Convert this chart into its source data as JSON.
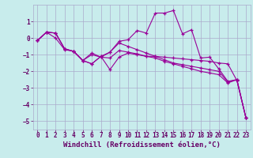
{
  "background_color": "#c8ecec",
  "grid_color": "#aaaacc",
  "line_color": "#990099",
  "marker": "+",
  "xlabel": "Windchill (Refroidissement éolien,°C)",
  "xlabel_color": "#660066",
  "xlabel_fontsize": 6.5,
  "tick_color": "#660066",
  "tick_fontsize": 5.5,
  "xlim": [
    -0.5,
    23.5
  ],
  "ylim": [
    -5.5,
    2.0
  ],
  "yticks": [
    -5,
    -4,
    -3,
    -2,
    -1,
    0,
    1
  ],
  "xticks": [
    0,
    1,
    2,
    3,
    4,
    5,
    6,
    7,
    8,
    9,
    10,
    11,
    12,
    13,
    14,
    15,
    16,
    17,
    18,
    19,
    20,
    21,
    22,
    23
  ],
  "series": [
    [
      0,
      -0.15
    ],
    [
      1,
      0.35
    ],
    [
      2,
      0.3
    ],
    [
      3,
      -0.65
    ],
    [
      4,
      -0.8
    ],
    [
      5,
      -1.35
    ],
    [
      6,
      -0.9
    ],
    [
      7,
      -1.15
    ],
    [
      8,
      -0.85
    ],
    [
      9,
      -0.2
    ],
    [
      10,
      -0.1
    ],
    [
      11,
      0.45
    ],
    [
      12,
      0.3
    ],
    [
      13,
      1.5
    ],
    [
      14,
      1.5
    ],
    [
      15,
      1.65
    ],
    [
      16,
      0.25
    ],
    [
      17,
      0.5
    ],
    [
      18,
      -1.2
    ],
    [
      19,
      -1.15
    ],
    [
      20,
      -1.85
    ],
    [
      21,
      -2.6
    ],
    [
      22,
      -2.5
    ],
    [
      23,
      -4.8
    ]
  ],
  "series2": [
    [
      0,
      -0.15
    ],
    [
      1,
      0.35
    ],
    [
      2,
      0.3
    ],
    [
      3,
      -0.65
    ],
    [
      4,
      -0.8
    ],
    [
      5,
      -1.35
    ],
    [
      6,
      -1.55
    ],
    [
      7,
      -1.1
    ],
    [
      8,
      -1.9
    ],
    [
      9,
      -1.15
    ],
    [
      10,
      -0.9
    ],
    [
      11,
      -1.0
    ],
    [
      12,
      -1.1
    ],
    [
      13,
      -1.1
    ],
    [
      14,
      -1.15
    ],
    [
      15,
      -1.2
    ],
    [
      16,
      -1.25
    ],
    [
      17,
      -1.3
    ],
    [
      18,
      -1.35
    ],
    [
      19,
      -1.4
    ],
    [
      20,
      -1.5
    ],
    [
      21,
      -1.55
    ],
    [
      22,
      -2.55
    ],
    [
      23,
      -4.8
    ]
  ],
  "series3": [
    [
      0,
      -0.15
    ],
    [
      1,
      0.35
    ],
    [
      2,
      0.0
    ],
    [
      3,
      -0.7
    ],
    [
      4,
      -0.8
    ],
    [
      5,
      -1.35
    ],
    [
      6,
      -1.0
    ],
    [
      7,
      -1.15
    ],
    [
      8,
      -1.2
    ],
    [
      9,
      -0.75
    ],
    [
      10,
      -0.85
    ],
    [
      11,
      -0.95
    ],
    [
      12,
      -1.1
    ],
    [
      13,
      -1.2
    ],
    [
      14,
      -1.4
    ],
    [
      15,
      -1.55
    ],
    [
      16,
      -1.7
    ],
    [
      17,
      -1.85
    ],
    [
      18,
      -2.0
    ],
    [
      19,
      -2.1
    ],
    [
      20,
      -2.2
    ],
    [
      21,
      -2.7
    ],
    [
      22,
      -2.5
    ],
    [
      23,
      -4.8
    ]
  ],
  "series4": [
    [
      0,
      -0.15
    ],
    [
      1,
      0.35
    ],
    [
      2,
      0.3
    ],
    [
      3,
      -0.65
    ],
    [
      4,
      -0.8
    ],
    [
      5,
      -1.35
    ],
    [
      6,
      -1.55
    ],
    [
      7,
      -1.1
    ],
    [
      8,
      -0.85
    ],
    [
      9,
      -0.3
    ],
    [
      10,
      -0.5
    ],
    [
      11,
      -0.7
    ],
    [
      12,
      -0.9
    ],
    [
      13,
      -1.1
    ],
    [
      14,
      -1.3
    ],
    [
      15,
      -1.5
    ],
    [
      16,
      -1.6
    ],
    [
      17,
      -1.7
    ],
    [
      18,
      -1.8
    ],
    [
      19,
      -1.9
    ],
    [
      20,
      -2.0
    ],
    [
      21,
      -2.65
    ],
    [
      22,
      -2.5
    ],
    [
      23,
      -4.8
    ]
  ]
}
